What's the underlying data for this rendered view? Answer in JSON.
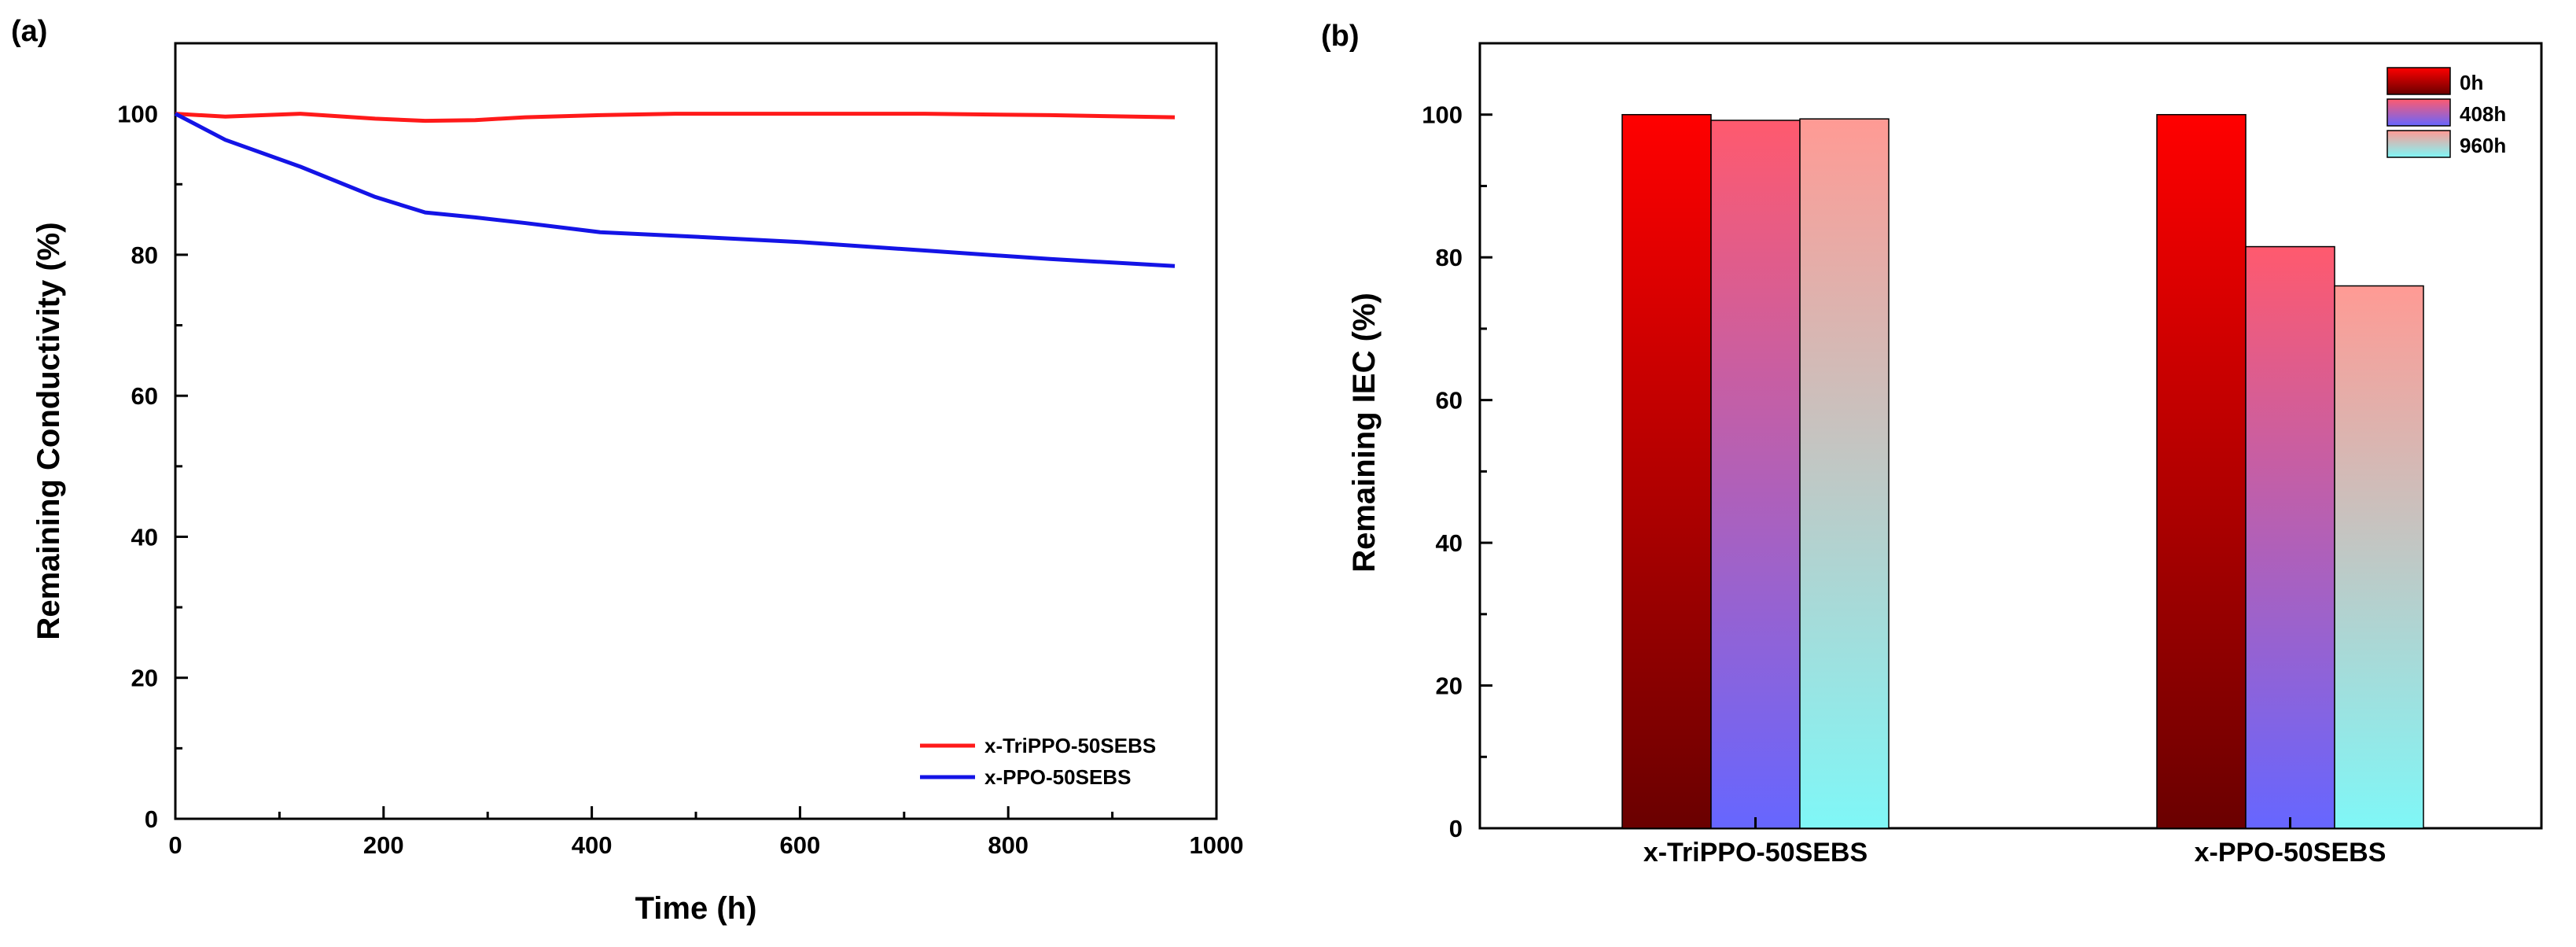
{
  "chart_data": [
    {
      "panel": "(a)",
      "type": "line",
      "xlabel": "Time (h)",
      "ylabel": "Remaining Conductivity (%)",
      "xlim": [
        0,
        1000
      ],
      "ylim": [
        0,
        110
      ],
      "xticks": [
        0,
        200,
        400,
        600,
        800,
        1000
      ],
      "yticks": [
        0,
        20,
        40,
        60,
        80,
        100
      ],
      "legend_position": "bottom-right",
      "series": [
        {
          "name": "x-TriPPO-50SEBS",
          "color": "#ff1a1a",
          "x": [
            0,
            48,
            120,
            192,
            240,
            288,
            336,
            408,
            480,
            600,
            720,
            840,
            960
          ],
          "y": [
            100,
            99.6,
            100,
            99.3,
            99,
            99.1,
            99.5,
            99.8,
            100,
            100,
            100,
            99.8,
            99.5
          ]
        },
        {
          "name": "x-PPO-50SEBS",
          "color": "#1414e6",
          "x": [
            0,
            48,
            120,
            192,
            240,
            288,
            336,
            408,
            480,
            600,
            720,
            840,
            960
          ],
          "y": [
            100,
            96.3,
            92.5,
            88.2,
            86,
            85.3,
            84.5,
            83.2,
            82.7,
            81.8,
            80.6,
            79.4,
            78.4
          ]
        }
      ]
    },
    {
      "panel": "(b)",
      "type": "bar",
      "xlabel": "",
      "ylabel": "Remaining IEC (%)",
      "ylim": [
        0,
        110
      ],
      "yticks": [
        0,
        20,
        40,
        60,
        80,
        100
      ],
      "categories": [
        "x-TriPPO-50SEBS",
        "x-PPO-50SEBS"
      ],
      "legend_position": "top-right",
      "series": [
        {
          "name": "0h",
          "values": [
            100,
            100
          ],
          "gradient": [
            "#ff0000",
            "#6a0000"
          ]
        },
        {
          "name": "408h",
          "values": [
            99.2,
            81.5
          ],
          "gradient": [
            "#ff5a6e",
            "#6666ff"
          ]
        },
        {
          "name": "960h",
          "values": [
            99.4,
            76
          ],
          "gradient": [
            "#ff9a94",
            "#7ff7f7"
          ]
        }
      ]
    }
  ]
}
